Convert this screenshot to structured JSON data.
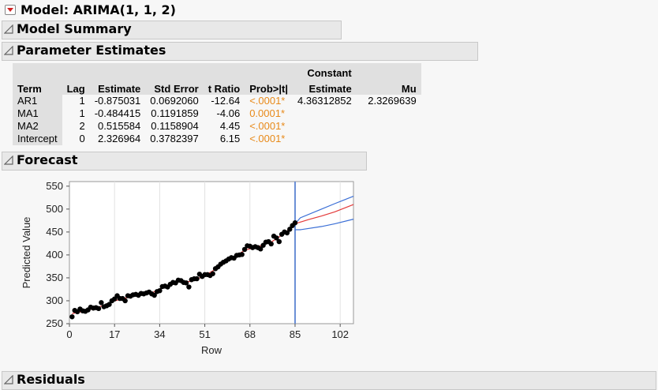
{
  "model": {
    "title": "Model: ARIMA(1, 1, 2)"
  },
  "sections": {
    "model_summary": "Model Summary",
    "parameter_estimates": "Parameter Estimates",
    "forecast": "Forecast",
    "residuals": "Residuals"
  },
  "parameter_table": {
    "headers": {
      "term": "Term",
      "lag": "Lag",
      "estimate": "Estimate",
      "std_error": "Std Error",
      "t_ratio": "t Ratio",
      "prob": "Prob>|t|",
      "constant_estimate_1": "Constant",
      "constant_estimate_2": "Estimate",
      "mu": "Mu"
    },
    "rows": [
      {
        "term": "AR1",
        "lag": "1",
        "estimate": "-0.875031",
        "std_error": "0.0692060",
        "t_ratio": "-12.64",
        "prob": "<.0001*"
      },
      {
        "term": "MA1",
        "lag": "1",
        "estimate": "-0.484415",
        "std_error": "0.1191859",
        "t_ratio": "-4.06",
        "prob": "0.0001*"
      },
      {
        "term": "MA2",
        "lag": "2",
        "estimate": "0.515584",
        "std_error": "0.1158904",
        "t_ratio": "4.45",
        "prob": "<.0001*"
      },
      {
        "term": "Intercept",
        "lag": "0",
        "estimate": "2.326964",
        "std_error": "0.3782397",
        "t_ratio": "6.15",
        "prob": "<.0001*"
      }
    ],
    "constant_estimate": "4.36312852",
    "mu": "2.3269639",
    "significance_color": "#e88a1a"
  },
  "chart_data": {
    "type": "scatter",
    "xlabel": "Row",
    "ylabel": "Predicted Value",
    "xlim": [
      0,
      107
    ],
    "ylim": [
      250,
      560
    ],
    "x_ticks": [
      0,
      17,
      34,
      51,
      68,
      85,
      102
    ],
    "y_ticks": [
      250,
      300,
      350,
      400,
      450,
      500,
      550
    ],
    "forecast_start": 85,
    "points": [
      [
        1,
        265
      ],
      [
        2,
        279
      ],
      [
        3,
        276
      ],
      [
        4,
        282
      ],
      [
        5,
        278
      ],
      [
        6,
        277
      ],
      [
        7,
        280
      ],
      [
        8,
        286
      ],
      [
        9,
        284
      ],
      [
        10,
        285
      ],
      [
        11,
        283
      ],
      [
        12,
        296
      ],
      [
        13,
        287
      ],
      [
        14,
        289
      ],
      [
        15,
        292
      ],
      [
        16,
        300
      ],
      [
        17,
        304
      ],
      [
        18,
        311
      ],
      [
        19,
        305
      ],
      [
        20,
        305
      ],
      [
        21,
        300
      ],
      [
        22,
        311
      ],
      [
        23,
        310
      ],
      [
        24,
        313
      ],
      [
        25,
        314
      ],
      [
        26,
        312
      ],
      [
        27,
        316
      ],
      [
        28,
        315
      ],
      [
        29,
        317
      ],
      [
        30,
        319
      ],
      [
        31,
        315
      ],
      [
        32,
        312
      ],
      [
        33,
        320
      ],
      [
        34,
        322
      ],
      [
        35,
        331
      ],
      [
        36,
        332
      ],
      [
        37,
        330
      ],
      [
        38,
        336
      ],
      [
        39,
        340
      ],
      [
        40,
        339
      ],
      [
        41,
        345
      ],
      [
        42,
        344
      ],
      [
        43,
        340
      ],
      [
        44,
        339
      ],
      [
        45,
        330
      ],
      [
        46,
        346
      ],
      [
        47,
        348
      ],
      [
        48,
        348
      ],
      [
        49,
        358
      ],
      [
        50,
        353
      ],
      [
        51,
        357
      ],
      [
        52,
        357
      ],
      [
        53,
        355
      ],
      [
        54,
        359
      ],
      [
        55,
        370
      ],
      [
        56,
        374
      ],
      [
        57,
        380
      ],
      [
        58,
        384
      ],
      [
        59,
        387
      ],
      [
        60,
        391
      ],
      [
        61,
        394
      ],
      [
        62,
        393
      ],
      [
        63,
        399
      ],
      [
        64,
        400
      ],
      [
        65,
        401
      ],
      [
        66,
        412
      ],
      [
        67,
        420
      ],
      [
        68,
        419
      ],
      [
        69,
        416
      ],
      [
        70,
        418
      ],
      [
        71,
        416
      ],
      [
        72,
        413
      ],
      [
        73,
        421
      ],
      [
        74,
        428
      ],
      [
        75,
        429
      ],
      [
        76,
        424
      ],
      [
        77,
        441
      ],
      [
        78,
        437
      ],
      [
        79,
        429
      ],
      [
        80,
        445
      ],
      [
        81,
        450
      ],
      [
        82,
        448
      ],
      [
        83,
        456
      ],
      [
        84,
        464
      ],
      [
        85,
        470
      ]
    ],
    "fitted": [
      [
        1,
        272
      ],
      [
        6,
        278
      ],
      [
        11,
        286
      ],
      [
        16,
        298
      ],
      [
        21,
        306
      ],
      [
        26,
        313
      ],
      [
        31,
        317
      ],
      [
        36,
        331
      ],
      [
        41,
        342
      ],
      [
        46,
        342
      ],
      [
        51,
        355
      ],
      [
        56,
        372
      ],
      [
        61,
        392
      ],
      [
        66,
        410
      ],
      [
        71,
        418
      ],
      [
        76,
        428
      ],
      [
        81,
        447
      ],
      [
        85,
        468
      ]
    ],
    "forecast": [
      [
        85,
        468
      ],
      [
        90,
        477
      ],
      [
        95,
        485
      ],
      [
        100,
        494
      ],
      [
        107,
        510
      ]
    ],
    "upper": [
      [
        85,
        468
      ],
      [
        87,
        481
      ],
      [
        95,
        500
      ],
      [
        100,
        512
      ],
      [
        107,
        528
      ]
    ],
    "lower": [
      [
        85,
        455
      ],
      [
        87,
        455
      ],
      [
        95,
        462
      ],
      [
        100,
        468
      ],
      [
        107,
        478
      ]
    ],
    "colors": {
      "forecast": "#e33a3a",
      "bands": "#3b6fd6",
      "divider": "#6b8fd6",
      "points": "#000000"
    }
  }
}
